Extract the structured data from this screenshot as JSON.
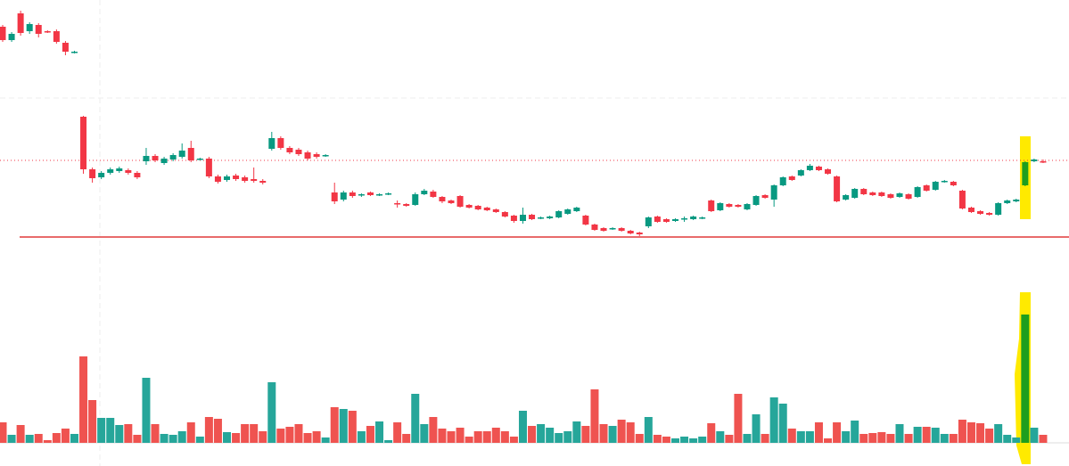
{
  "chart_data": {
    "type": "candlestick",
    "up_color": "#089981",
    "down_color": "#f23645",
    "volume_up_color": "#26a69a",
    "volume_down_color": "#ef5350",
    "highlight": {
      "index": 114,
      "color": "#1e9e1e"
    },
    "ylim": [
      30,
      300
    ],
    "volume_ylim": [
      0,
      200
    ],
    "support_line": {
      "value": 34,
      "color": "#e03a3a"
    },
    "last_price_line": {
      "value": 120,
      "color": "#f23645"
    },
    "open": [
      270,
      255,
      285,
      265,
      272,
      265,
      265,
      252,
      241,
      169,
      110,
      101,
      106,
      108,
      109,
      106,
      119,
      125,
      117,
      121,
      124,
      134,
      121,
      122,
      102,
      98,
      103,
      101,
      99,
      97,
      133,
      145,
      134,
      132,
      129,
      127,
      125,
      84,
      76,
      84,
      81,
      84,
      81,
      82,
      72,
      71,
      70,
      82,
      85,
      79,
      75,
      80,
      70,
      69,
      67,
      65,
      62,
      58,
      52,
      59,
      55,
      55,
      56,
      60,
      63,
      58,
      48,
      44,
      43,
      44,
      41,
      39,
      46,
      57,
      54,
      52,
      54,
      54,
      55,
      75,
      64,
      71,
      70,
      65,
      70,
      81,
      76,
      92,
      102,
      103,
      109,
      113,
      110,
      102,
      76,
      78,
      88,
      84,
      84,
      82,
      79,
      82,
      79,
      92,
      87,
      96,
      96,
      86,
      67,
      63,
      61,
      59,
      72,
      74,
      92,
      119,
      119
    ],
    "high": [
      272,
      264,
      288,
      275,
      274,
      266,
      267,
      254,
      243,
      170,
      112,
      108,
      112,
      113,
      111,
      108,
      134,
      127,
      124,
      128,
      139,
      142,
      123,
      124,
      104,
      104,
      105,
      103,
      112,
      99,
      152,
      147,
      136,
      134,
      131,
      129,
      127,
      95,
      86,
      86,
      83,
      85,
      83,
      84,
      75,
      72,
      84,
      88,
      87,
      80,
      76,
      81,
      71,
      70,
      68,
      66,
      63,
      59,
      67,
      60,
      57,
      58,
      64,
      66,
      68,
      59,
      49,
      45,
      45,
      45,
      42,
      40,
      57,
      58,
      55,
      55,
      57,
      58,
      57,
      76,
      73,
      72,
      71,
      72,
      81,
      82,
      93,
      102,
      103,
      110,
      116,
      114,
      111,
      103,
      82,
      89,
      89,
      85,
      85,
      83,
      84,
      83,
      91,
      93,
      97,
      98,
      97,
      87,
      68,
      64,
      62,
      73,
      76,
      77,
      119,
      122,
      121
    ],
    "low": [
      253,
      253,
      260,
      262,
      258,
      263,
      251,
      238,
      240,
      105,
      95,
      99,
      104,
      106,
      104,
      99,
      115,
      118,
      115,
      119,
      122,
      118,
      120,
      100,
      94,
      96,
      97,
      95,
      95,
      93,
      131,
      132,
      127,
      125,
      120,
      122,
      124,
      71,
      74,
      78,
      79,
      80,
      80,
      81,
      67,
      68,
      69,
      81,
      78,
      72,
      71,
      67,
      66,
      64,
      63,
      61,
      56,
      50,
      49,
      53,
      54,
      54,
      55,
      59,
      62,
      47,
      41,
      40,
      42,
      40,
      37,
      35,
      44,
      50,
      50,
      51,
      51,
      53,
      54,
      62,
      63,
      67,
      67,
      64,
      69,
      77,
      68,
      91,
      97,
      102,
      108,
      108,
      104,
      73,
      75,
      77,
      81,
      80,
      79,
      77,
      78,
      76,
      78,
      85,
      86,
      95,
      91,
      65,
      61,
      59,
      58,
      58,
      71,
      73,
      91,
      118,
      117
    ],
    "close": [
      255,
      262,
      263,
      273,
      262,
      264,
      253,
      242,
      242,
      110,
      100,
      106,
      110,
      111,
      106,
      101,
      125,
      120,
      122,
      126,
      131,
      120,
      122,
      102,
      96,
      102,
      99,
      97,
      97,
      95,
      145,
      134,
      129,
      127,
      122,
      124,
      126,
      74,
      84,
      80,
      82,
      81,
      82,
      83,
      71,
      69,
      82,
      86,
      79,
      74,
      72,
      68,
      67,
      65,
      64,
      62,
      57,
      52,
      59,
      54,
      56,
      57,
      63,
      65,
      67,
      48,
      42,
      41,
      44,
      41,
      38,
      37,
      56,
      51,
      51,
      54,
      55,
      57,
      56,
      63,
      72,
      68,
      68,
      71,
      80,
      78,
      92,
      101,
      98,
      109,
      114,
      109,
      105,
      74,
      81,
      88,
      82,
      81,
      80,
      78,
      83,
      77,
      90,
      86,
      96,
      97,
      92,
      66,
      62,
      60,
      59,
      72,
      75,
      76,
      118,
      121,
      118
    ],
    "volume": [
      23,
      9,
      20,
      9,
      10,
      3,
      11,
      16,
      10,
      97,
      48,
      28,
      28,
      20,
      21,
      9,
      73,
      21,
      10,
      9,
      13,
      23,
      7,
      29,
      27,
      12,
      11,
      21,
      21,
      13,
      68,
      16,
      18,
      21,
      11,
      13,
      6,
      40,
      38,
      36,
      13,
      19,
      24,
      3,
      23,
      10,
      55,
      21,
      29,
      16,
      13,
      17,
      7,
      13,
      13,
      17,
      13,
      7,
      36,
      19,
      21,
      17,
      11,
      13,
      24,
      19,
      60,
      21,
      19,
      26,
      23,
      10,
      29,
      9,
      7,
      5,
      7,
      5,
      7,
      22,
      13,
      9,
      55,
      10,
      32,
      10,
      51,
      44,
      16,
      13,
      13,
      23,
      5,
      23,
      13,
      25,
      10,
      11,
      12,
      10,
      21,
      10,
      18,
      18,
      17,
      10,
      10,
      26,
      23,
      22,
      16,
      21,
      9,
      6,
      144,
      17,
      9
    ]
  }
}
